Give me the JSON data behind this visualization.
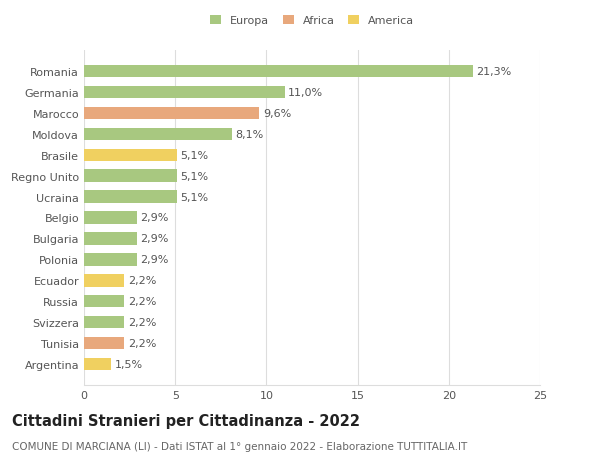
{
  "countries": [
    "Romania",
    "Germania",
    "Marocco",
    "Moldova",
    "Brasile",
    "Regno Unito",
    "Ucraina",
    "Belgio",
    "Bulgaria",
    "Polonia",
    "Ecuador",
    "Russia",
    "Svizzera",
    "Tunisia",
    "Argentina"
  ],
  "values": [
    21.3,
    11.0,
    9.6,
    8.1,
    5.1,
    5.1,
    5.1,
    2.9,
    2.9,
    2.9,
    2.2,
    2.2,
    2.2,
    2.2,
    1.5
  ],
  "labels": [
    "21,3%",
    "11,0%",
    "9,6%",
    "8,1%",
    "5,1%",
    "5,1%",
    "5,1%",
    "2,9%",
    "2,9%",
    "2,9%",
    "2,2%",
    "2,2%",
    "2,2%",
    "2,2%",
    "1,5%"
  ],
  "colors": [
    "#a8c880",
    "#a8c880",
    "#e8a87c",
    "#a8c880",
    "#f0d060",
    "#a8c880",
    "#a8c880",
    "#a8c880",
    "#a8c880",
    "#a8c880",
    "#f0d060",
    "#a8c880",
    "#a8c880",
    "#e8a87c",
    "#f0d060"
  ],
  "legend_labels": [
    "Europa",
    "Africa",
    "America"
  ],
  "legend_colors": [
    "#a8c880",
    "#e8a87c",
    "#f0d060"
  ],
  "title": "Cittadini Stranieri per Cittadinanza - 2022",
  "subtitle": "COMUNE DI MARCIANA (LI) - Dati ISTAT al 1° gennaio 2022 - Elaborazione TUTTITALIA.IT",
  "xlim": [
    0,
    25
  ],
  "xticks": [
    0,
    5,
    10,
    15,
    20,
    25
  ],
  "background_color": "#ffffff",
  "bar_height": 0.6,
  "grid_color": "#dddddd",
  "label_fontsize": 8,
  "title_fontsize": 10.5,
  "subtitle_fontsize": 7.5,
  "tick_fontsize": 8
}
